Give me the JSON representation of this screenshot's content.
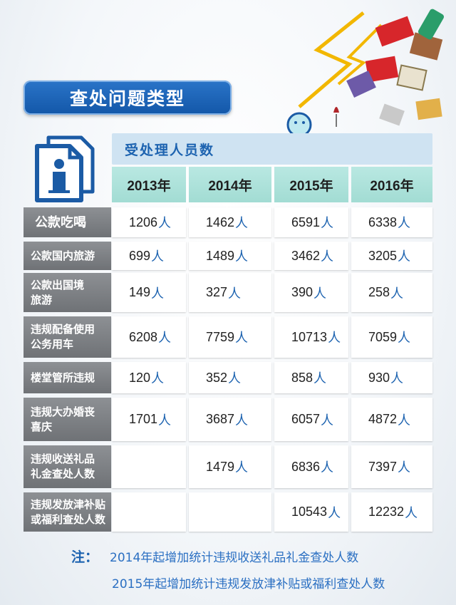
{
  "title": "查处问题类型",
  "header": "受处理人员数",
  "chart_data": {
    "type": "table",
    "columns": [
      "2013年",
      "2014年",
      "2015年",
      "2016年"
    ],
    "unit": "人",
    "rows": [
      {
        "label": "公款吃喝",
        "values": [
          "1206",
          "1462",
          "6591",
          "6338"
        ]
      },
      {
        "label": "公款国内旅游",
        "values": [
          "699",
          "1489",
          "3462",
          "3205"
        ]
      },
      {
        "label": "公款出国境旅游",
        "values": [
          "149",
          "327",
          "390",
          "258"
        ]
      },
      {
        "label": "违规配备使用公务用车",
        "values": [
          "6208",
          "7759",
          "10713",
          "7059"
        ]
      },
      {
        "label": "楼堂管所违规",
        "values": [
          "120",
          "352",
          "858",
          "930"
        ]
      },
      {
        "label": "违规大办婚丧喜庆",
        "values": [
          "1701",
          "3687",
          "6057",
          "4872"
        ]
      },
      {
        "label": "违规收送礼品礼金查处人数",
        "values": [
          "",
          "1479",
          "6836",
          "7397"
        ]
      },
      {
        "label": "违规发放津补贴或福利查处人数",
        "values": [
          "",
          "",
          "10543",
          "12232"
        ]
      }
    ]
  },
  "note": {
    "lead": "注：",
    "line1": "2014年起增加统计违规收送礼品礼金查处人数",
    "line2": "2015年起增加统计违规发放津补贴或福利查处人数"
  },
  "colors": {
    "accent": "#1d63b0",
    "label_bg": "#7e8185",
    "year_bg": "#aee1d9",
    "header_bg": "#cfe3f2"
  },
  "icons": [
    "document-person-icon",
    "gift-decoration-icon"
  ]
}
